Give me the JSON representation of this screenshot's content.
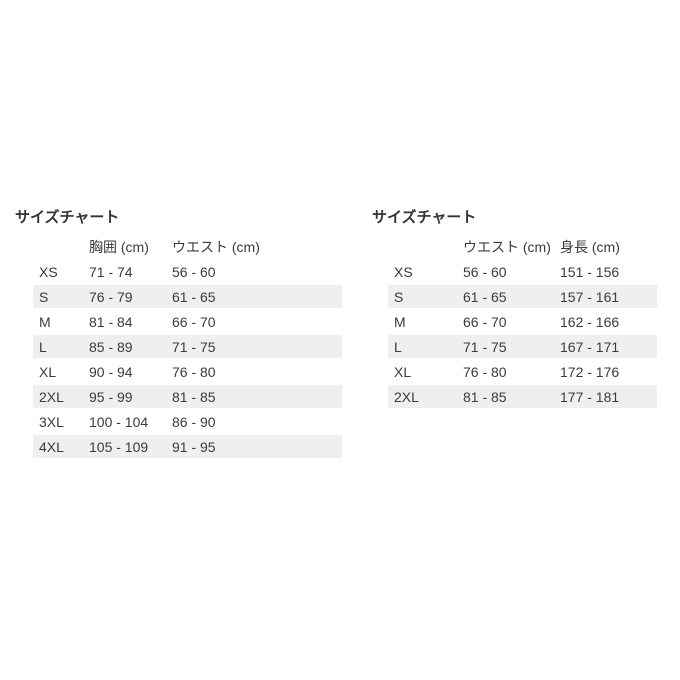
{
  "colors": {
    "background": "#ffffff",
    "stripe": "#efefef",
    "text": "#3b3b3b",
    "title": "#333333"
  },
  "chart_data": [
    {
      "type": "table",
      "title": "サイズチャート",
      "columns": [
        "",
        "胸囲 (cm)",
        "ウエスト (cm)"
      ],
      "rows": [
        [
          "XS",
          "71 - 74",
          "56 - 60"
        ],
        [
          "S",
          "76 - 79",
          "61 - 65"
        ],
        [
          "M",
          "81 - 84",
          "66 - 70"
        ],
        [
          "L",
          "85 - 89",
          "71 - 75"
        ],
        [
          "XL",
          "90 - 94",
          "76 - 80"
        ],
        [
          "2XL",
          "95 - 99",
          "81 - 85"
        ],
        [
          "3XL",
          "100 - 104",
          "86 - 90"
        ],
        [
          "4XL",
          "105 - 109",
          "91 - 95"
        ]
      ]
    },
    {
      "type": "table",
      "title": "サイズチャート",
      "columns": [
        "",
        "ウエスト (cm)",
        "身長 (cm)"
      ],
      "rows": [
        [
          "XS",
          "56 - 60",
          "151 - 156"
        ],
        [
          "S",
          "61 - 65",
          "157 - 161"
        ],
        [
          "M",
          "66 - 70",
          "162 - 166"
        ],
        [
          "L",
          "71 - 75",
          "167 - 171"
        ],
        [
          "XL",
          "76 - 80",
          "172 - 176"
        ],
        [
          "2XL",
          "81 - 85",
          "177 - 181"
        ]
      ]
    }
  ]
}
